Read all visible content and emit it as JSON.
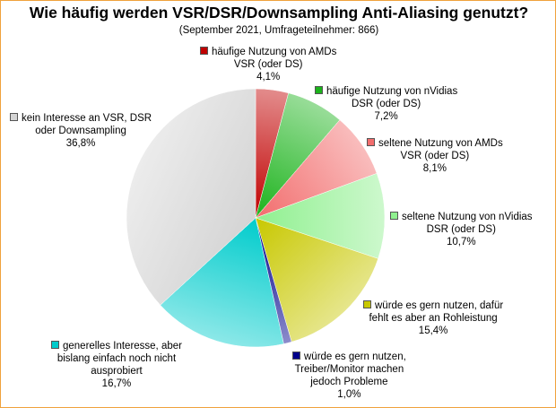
{
  "chart_data": {
    "type": "pie",
    "title": "Wie häufig werden VSR/DSR/Downsampling Anti-Aliasing genutzt?",
    "subtitle": "(September 2021, Umfrageteilnehmer: 866)",
    "slices": [
      {
        "lines": [
          "häufige Nutzung von AMDs",
          "VSR (oder DS)"
        ],
        "value": 4.1,
        "value_label": "4,1%",
        "color": "#c00000"
      },
      {
        "lines": [
          "häufige Nutzung von nVidias",
          "DSR (oder DS)"
        ],
        "value": 7.2,
        "value_label": "7,2%",
        "color": "#1cb31c"
      },
      {
        "lines": [
          "seltene Nutzung von AMDs",
          "VSR (oder DS)"
        ],
        "value": 8.1,
        "value_label": "8,1%",
        "color": "#f26d6d"
      },
      {
        "lines": [
          "seltene Nutzung von nVidias",
          "DSR (oder DS)"
        ],
        "value": 10.7,
        "value_label": "10,7%",
        "color": "#8ff08f"
      },
      {
        "lines": [
          "würde es gern nutzen, dafür",
          "fehlt es aber an Rohleistung"
        ],
        "value": 15.4,
        "value_label": "15,4%",
        "color": "#c8c800"
      },
      {
        "lines": [
          "würde es gern nutzen,",
          "Treiber/Monitor machen",
          "jedoch Probleme"
        ],
        "value": 1.0,
        "value_label": "1,0%",
        "color": "#00008b"
      },
      {
        "lines": [
          "generelles Interesse, aber",
          "bislang einfach noch nicht",
          "ausprobiert"
        ],
        "value": 16.7,
        "value_label": "16,7%",
        "color": "#00cccc"
      },
      {
        "lines": [
          "kein Interesse an VSR, DSR",
          "oder Downsampling"
        ],
        "value": 36.8,
        "value_label": "36,8%",
        "color": "#d4d4d4"
      }
    ]
  }
}
